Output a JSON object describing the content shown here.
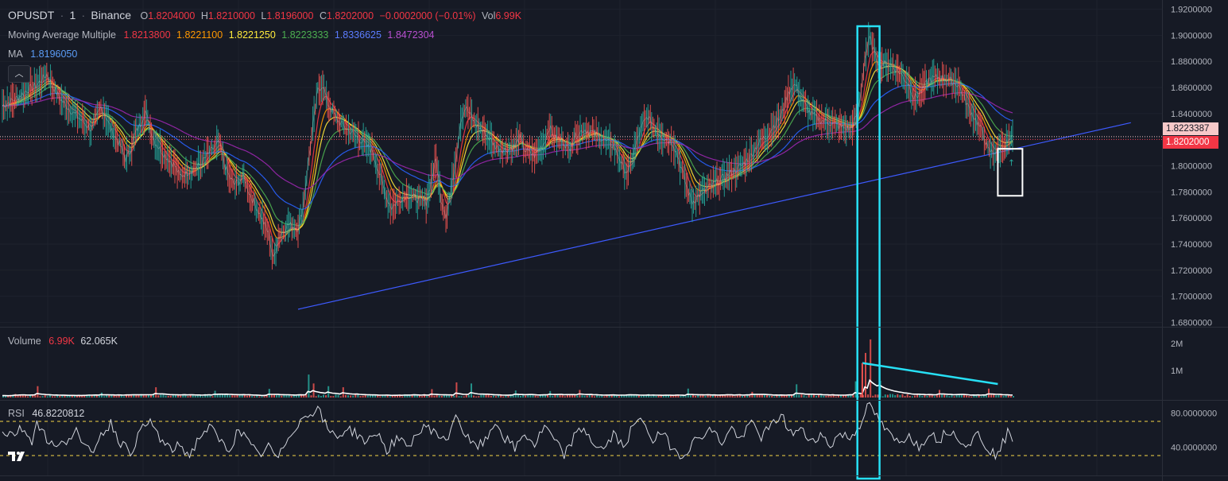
{
  "header": {
    "symbol": "OPUSDT",
    "interval": "1",
    "exchange": "Binance",
    "open_label": "O",
    "open": "1.8204000",
    "high_label": "H",
    "high": "1.8210000",
    "low_label": "L",
    "low": "1.8196000",
    "close_label": "C",
    "close": "1.8202000",
    "change": "−0.0002000 (−0.01%)",
    "vol_label": "Vol",
    "vol": "6.99K"
  },
  "indicators": {
    "mam_name": "Moving Average Multiple",
    "mam_values": [
      "1.8213800",
      "1.8221100",
      "1.8221250",
      "1.8223333",
      "1.8336625",
      "1.8472304"
    ],
    "mam_colors": [
      "#f23645",
      "#ff9800",
      "#ffeb3b",
      "#4caf50",
      "#2962ff",
      "#9c27b0"
    ],
    "ma_name": "MA",
    "ma_value": "1.8196050",
    "ma_color": "#5b9cf6",
    "volume_name": "Volume",
    "volume_value1": "6.99K",
    "volume_value2": "62.065K",
    "rsi_name": "RSI",
    "rsi_value": "46.8220812"
  },
  "price_axis": {
    "ticks": [
      "1.9200000",
      "1.9000000",
      "1.8800000",
      "1.8600000",
      "1.8400000",
      "1.8200000",
      "1.8000000",
      "1.7800000",
      "1.7600000",
      "1.7400000",
      "1.7200000",
      "1.7000000",
      "1.6800000"
    ],
    "tag_upper": "1.8223387",
    "tag_current": "1.8202000",
    "tag_upper_color": "#f7c9c9",
    "tag_current_color": "#f23645"
  },
  "volume_axis": {
    "ticks": [
      "2M",
      "1M"
    ]
  },
  "rsi_axis": {
    "ticks": [
      "80.0000000",
      "40.0000000"
    ]
  },
  "chart_data": {
    "type": "line",
    "title": "",
    "price_range": [
      1.668,
      1.93
    ],
    "price_series": [
      [
        0,
        1.846
      ],
      [
        3,
        1.852
      ],
      [
        5,
        1.858
      ],
      [
        7,
        1.862
      ],
      [
        9,
        1.87
      ],
      [
        10,
        1.862
      ],
      [
        12,
        1.85
      ],
      [
        14,
        1.842
      ],
      [
        16,
        1.835
      ],
      [
        18,
        1.828
      ],
      [
        20,
        1.845
      ],
      [
        21,
        1.838
      ],
      [
        22,
        1.828
      ],
      [
        24,
        1.815
      ],
      [
        25,
        1.805
      ],
      [
        26,
        1.812
      ],
      [
        27,
        1.825
      ],
      [
        28,
        1.832
      ],
      [
        29,
        1.842
      ],
      [
        30,
        1.828
      ],
      [
        31,
        1.818
      ],
      [
        33,
        1.808
      ],
      [
        35,
        1.8
      ],
      [
        36,
        1.792
      ],
      [
        38,
        1.796
      ],
      [
        40,
        1.8
      ],
      [
        42,
        1.81
      ],
      [
        44,
        1.818
      ],
      [
        45,
        1.802
      ],
      [
        46,
        1.792
      ],
      [
        47,
        1.786
      ],
      [
        48,
        1.788
      ],
      [
        49,
        1.792
      ],
      [
        50,
        1.78
      ],
      [
        52,
        1.765
      ],
      [
        54,
        1.748
      ],
      [
        55,
        1.728
      ],
      [
        56,
        1.745
      ],
      [
        58,
        1.755
      ],
      [
        60,
        1.752
      ],
      [
        61,
        1.768
      ],
      [
        62,
        1.8
      ],
      [
        63,
        1.83
      ],
      [
        64,
        1.858
      ],
      [
        65,
        1.862
      ],
      [
        66,
        1.848
      ],
      [
        68,
        1.835
      ],
      [
        70,
        1.828
      ],
      [
        72,
        1.822
      ],
      [
        74,
        1.815
      ],
      [
        75,
        1.812
      ],
      [
        76,
        1.8
      ],
      [
        77,
        1.788
      ],
      [
        78,
        1.775
      ],
      [
        79,
        1.768
      ],
      [
        80,
        1.772
      ],
      [
        82,
        1.778
      ],
      [
        84,
        1.775
      ],
      [
        86,
        1.772
      ],
      [
        87,
        1.788
      ],
      [
        88,
        1.805
      ],
      [
        89,
        1.775
      ],
      [
        90,
        1.762
      ],
      [
        91,
        1.78
      ],
      [
        92,
        1.805
      ],
      [
        93,
        1.835
      ],
      [
        94,
        1.845
      ],
      [
        96,
        1.832
      ],
      [
        98,
        1.825
      ],
      [
        100,
        1.815
      ],
      [
        102,
        1.812
      ],
      [
        104,
        1.815
      ],
      [
        105,
        1.822
      ],
      [
        106,
        1.812
      ],
      [
        108,
        1.808
      ],
      [
        110,
        1.818
      ],
      [
        111,
        1.83
      ],
      [
        112,
        1.822
      ],
      [
        114,
        1.818
      ],
      [
        115,
        1.812
      ],
      [
        116,
        1.822
      ],
      [
        118,
        1.828
      ],
      [
        120,
        1.825
      ],
      [
        122,
        1.82
      ],
      [
        124,
        1.815
      ],
      [
        125,
        1.808
      ],
      [
        126,
        1.798
      ],
      [
        127,
        1.795
      ],
      [
        128,
        1.808
      ],
      [
        129,
        1.822
      ],
      [
        130,
        1.832
      ],
      [
        131,
        1.838
      ],
      [
        132,
        1.83
      ],
      [
        134,
        1.822
      ],
      [
        136,
        1.818
      ],
      [
        137,
        1.808
      ],
      [
        138,
        1.795
      ],
      [
        139,
        1.782
      ],
      [
        140,
        1.772
      ],
      [
        141,
        1.776
      ],
      [
        142,
        1.78
      ],
      [
        144,
        1.785
      ],
      [
        146,
        1.79
      ],
      [
        148,
        1.795
      ],
      [
        150,
        1.8
      ],
      [
        152,
        1.808
      ],
      [
        153,
        1.815
      ],
      [
        154,
        1.82
      ],
      [
        155,
        1.822
      ],
      [
        156,
        1.828
      ],
      [
        158,
        1.838
      ],
      [
        159,
        1.85
      ],
      [
        160,
        1.86
      ],
      [
        161,
        1.862
      ],
      [
        162,
        1.852
      ],
      [
        164,
        1.84
      ],
      [
        166,
        1.835
      ],
      [
        168,
        1.833
      ],
      [
        170,
        1.83
      ],
      [
        172,
        1.828
      ],
      [
        173,
        1.835
      ],
      [
        174,
        1.85
      ],
      [
        175,
        1.882
      ],
      [
        176,
        1.898
      ],
      [
        177,
        1.886
      ],
      [
        178,
        1.878
      ],
      [
        180,
        1.878
      ],
      [
        182,
        1.872
      ],
      [
        184,
        1.862
      ],
      [
        185,
        1.852
      ],
      [
        186,
        1.855
      ],
      [
        187,
        1.86
      ],
      [
        188,
        1.866
      ],
      [
        190,
        1.868
      ],
      [
        192,
        1.866
      ],
      [
        194,
        1.862
      ],
      [
        196,
        1.845
      ],
      [
        198,
        1.832
      ],
      [
        199,
        1.825
      ],
      [
        200,
        1.812
      ],
      [
        201,
        1.81
      ],
      [
        202,
        1.812
      ],
      [
        204,
        1.818
      ],
      [
        205,
        1.821
      ]
    ],
    "trendline": {
      "from": [
        60,
        1.69
      ],
      "to": [
        229,
        1.833
      ]
    },
    "horizontal_lines": [
      1.8223387,
      1.8202
    ],
    "volume_range": [
      0,
      2600000
    ],
    "volume_spikes": [
      [
        7,
        420000
      ],
      [
        20,
        180000
      ],
      [
        31,
        380000
      ],
      [
        43,
        250000
      ],
      [
        54,
        320000
      ],
      [
        62,
        850000
      ],
      [
        63,
        520000
      ],
      [
        66,
        420000
      ],
      [
        69,
        380000
      ],
      [
        87,
        310000
      ],
      [
        92,
        560000
      ],
      [
        95,
        520000
      ],
      [
        104,
        260000
      ],
      [
        111,
        240000
      ],
      [
        117,
        280000
      ],
      [
        139,
        330000
      ],
      [
        152,
        210000
      ],
      [
        161,
        490000
      ],
      [
        173,
        600000
      ],
      [
        175,
        1650000
      ],
      [
        176,
        2150000
      ],
      [
        178,
        620000
      ],
      [
        190,
        280000
      ],
      [
        200,
        330000
      ]
    ],
    "rsi_range": [
      10,
      95
    ],
    "rsi_levels": [
      70,
      30
    ],
    "rsi_series": [
      [
        0,
        58
      ],
      [
        2,
        55
      ],
      [
        4,
        62
      ],
      [
        6,
        48
      ],
      [
        7,
        70
      ],
      [
        9,
        50
      ],
      [
        11,
        38
      ],
      [
        13,
        48
      ],
      [
        15,
        62
      ],
      [
        16,
        42
      ],
      [
        18,
        33
      ],
      [
        20,
        55
      ],
      [
        22,
        68
      ],
      [
        24,
        45
      ],
      [
        26,
        34
      ],
      [
        28,
        58
      ],
      [
        30,
        70
      ],
      [
        32,
        50
      ],
      [
        34,
        36
      ],
      [
        36,
        42
      ],
      [
        38,
        30
      ],
      [
        40,
        52
      ],
      [
        42,
        64
      ],
      [
        44,
        48
      ],
      [
        46,
        36
      ],
      [
        48,
        62
      ],
      [
        50,
        44
      ],
      [
        52,
        30
      ],
      [
        54,
        40
      ],
      [
        56,
        26
      ],
      [
        58,
        52
      ],
      [
        60,
        68
      ],
      [
        62,
        78
      ],
      [
        64,
        86
      ],
      [
        66,
        60
      ],
      [
        68,
        52
      ],
      [
        70,
        62
      ],
      [
        72,
        55
      ],
      [
        74,
        45
      ],
      [
        76,
        58
      ],
      [
        78,
        36
      ],
      [
        80,
        50
      ],
      [
        82,
        40
      ],
      [
        84,
        54
      ],
      [
        86,
        64
      ],
      [
        88,
        58
      ],
      [
        90,
        44
      ],
      [
        92,
        80
      ],
      [
        94,
        52
      ],
      [
        96,
        40
      ],
      [
        98,
        46
      ],
      [
        100,
        70
      ],
      [
        102,
        50
      ],
      [
        104,
        38
      ],
      [
        106,
        56
      ],
      [
        108,
        42
      ],
      [
        110,
        64
      ],
      [
        112,
        48
      ],
      [
        114,
        30
      ],
      [
        116,
        52
      ],
      [
        118,
        62
      ],
      [
        120,
        44
      ],
      [
        122,
        36
      ],
      [
        124,
        55
      ],
      [
        126,
        40
      ],
      [
        128,
        64
      ],
      [
        130,
        72
      ],
      [
        132,
        48
      ],
      [
        134,
        56
      ],
      [
        136,
        38
      ],
      [
        138,
        30
      ],
      [
        140,
        44
      ],
      [
        142,
        55
      ],
      [
        144,
        60
      ],
      [
        146,
        45
      ],
      [
        148,
        62
      ],
      [
        150,
        48
      ],
      [
        152,
        70
      ],
      [
        154,
        52
      ],
      [
        156,
        64
      ],
      [
        158,
        78
      ],
      [
        160,
        56
      ],
      [
        162,
        60
      ],
      [
        164,
        48
      ],
      [
        166,
        54
      ],
      [
        168,
        42
      ],
      [
        170,
        56
      ],
      [
        172,
        50
      ],
      [
        174,
        66
      ],
      [
        175,
        82
      ],
      [
        176,
        90
      ],
      [
        178,
        70
      ],
      [
        180,
        54
      ],
      [
        182,
        44
      ],
      [
        184,
        56
      ],
      [
        186,
        38
      ],
      [
        188,
        58
      ],
      [
        190,
        48
      ],
      [
        192,
        60
      ],
      [
        194,
        52
      ],
      [
        196,
        42
      ],
      [
        198,
        56
      ],
      [
        200,
        38
      ],
      [
        202,
        30
      ],
      [
        203,
        44
      ],
      [
        204,
        56
      ],
      [
        205,
        52
      ]
    ],
    "annotations": {
      "cyan_box_x": [
        173.5,
        178
      ],
      "white_box": {
        "x": [
          202,
          207
        ],
        "price": [
          1.777,
          1.813
        ]
      },
      "volume_trend": {
        "from": [
          174.5,
          2550000
        ],
        "to": [
          202,
          500000
        ]
      },
      "arrow_symbol": "↑"
    }
  }
}
